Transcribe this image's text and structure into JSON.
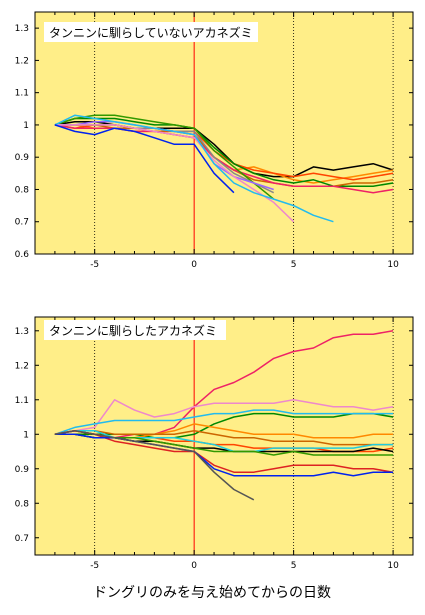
{
  "xlabel": "ドングリのみを与え始めてからの日数",
  "chart_data": [
    {
      "type": "line",
      "title": "タンニンに馴らしていないアカネズミ",
      "xlim": [
        -8,
        11
      ],
      "ylim": [
        0.6,
        1.35
      ],
      "xticks": [
        -5,
        0,
        5,
        10
      ],
      "yticks": [
        0.6,
        0.7,
        0.8,
        0.9,
        1,
        1.1,
        1.2,
        1.3
      ],
      "ytick_labels": [
        "0.6",
        "0.7",
        "0.8",
        "0.9",
        "1",
        "1.1",
        "1.2",
        "1.3"
      ],
      "grid": "dotted vertical lines at x = -5, 5, 10; solid red line at x = 0",
      "background": "#ffee88",
      "series": [
        {
          "color": "#000000",
          "x": [
            -7,
            -6,
            -5,
            -4,
            -3,
            -2,
            -1,
            0,
            1,
            2,
            3,
            4,
            5,
            6,
            7,
            8,
            9,
            10
          ],
          "y": [
            1,
            1.01,
            1.01,
            1.0,
            0.99,
            0.99,
            0.99,
            0.99,
            0.94,
            0.88,
            0.85,
            0.84,
            0.84,
            0.87,
            0.86,
            0.87,
            0.88,
            0.86
          ]
        },
        {
          "color": "#ff8800",
          "x": [
            -7,
            -6,
            -5,
            -4,
            -3,
            -2,
            -1,
            0,
            1,
            2,
            3,
            4,
            5,
            6,
            7,
            8,
            9,
            10
          ],
          "y": [
            1,
            1.0,
            0.99,
            0.99,
            0.98,
            0.98,
            0.97,
            0.96,
            0.9,
            0.86,
            0.87,
            0.85,
            0.83,
            0.82,
            0.83,
            0.84,
            0.85,
            0.86
          ]
        },
        {
          "color": "#ff4400",
          "x": [
            -7,
            -6,
            -5,
            -4,
            -3,
            -2,
            -1,
            0,
            1,
            2,
            3,
            4,
            5,
            6,
            7,
            8,
            9,
            10
          ],
          "y": [
            1,
            0.99,
            1.0,
            1.0,
            0.99,
            0.99,
            0.98,
            0.98,
            0.92,
            0.88,
            0.86,
            0.85,
            0.84,
            0.85,
            0.84,
            0.83,
            0.84,
            0.85
          ]
        },
        {
          "color": "#008800",
          "x": [
            -7,
            -6,
            -5,
            -4,
            -3,
            -2,
            -1,
            0,
            1,
            2,
            3,
            4,
            5,
            6,
            7,
            8,
            9,
            10
          ],
          "y": [
            1,
            1.02,
            1.02,
            1.02,
            1.01,
            1.0,
            1.0,
            0.99,
            0.93,
            0.88,
            0.85,
            0.83,
            0.82,
            0.83,
            0.81,
            0.81,
            0.81,
            0.82
          ]
        },
        {
          "color": "#cc6600",
          "x": [
            -7,
            -6,
            -5,
            -4,
            -3,
            -2,
            -1,
            0,
            1,
            2,
            3,
            4,
            5,
            6,
            7,
            8,
            9,
            10
          ],
          "y": [
            1,
            1.0,
            1.0,
            0.99,
            0.99,
            0.98,
            0.98,
            0.97,
            0.9,
            0.86,
            0.83,
            0.82,
            0.81,
            0.81,
            0.81,
            0.82,
            0.82,
            0.83
          ]
        },
        {
          "color": "#ee2266",
          "x": [
            -7,
            -6,
            -5,
            -4,
            -3,
            -2,
            -1,
            0,
            1,
            2,
            3,
            4,
            5,
            6,
            7,
            8,
            9,
            10
          ],
          "y": [
            1,
            0.99,
            0.99,
            0.99,
            0.98,
            0.98,
            0.97,
            0.96,
            0.9,
            0.86,
            0.84,
            0.82,
            0.81,
            0.81,
            0.81,
            0.8,
            0.79,
            0.8
          ]
        },
        {
          "color": "#339900",
          "x": [
            -7,
            -6,
            -5,
            -4,
            -3,
            -2,
            -1,
            0,
            1,
            2,
            3,
            4
          ],
          "y": [
            1,
            1.02,
            1.03,
            1.03,
            1.02,
            1.01,
            1.0,
            0.99,
            0.92,
            0.87,
            0.82,
            0.77
          ]
        },
        {
          "color": "#888888",
          "x": [
            -7,
            -6,
            -5,
            -4,
            -3,
            -2,
            -1,
            0,
            1,
            2,
            3,
            4
          ],
          "y": [
            1,
            1.0,
            1.0,
            1.0,
            0.99,
            0.99,
            0.98,
            0.98,
            0.9,
            0.85,
            0.82,
            0.79
          ]
        },
        {
          "color": "#9966ff",
          "x": [
            -7,
            -6,
            -5,
            -4,
            -3,
            -2,
            -1,
            0,
            1,
            2,
            3,
            4
          ],
          "y": [
            1,
            1.0,
            1.01,
            1.01,
            1.0,
            0.99,
            0.98,
            0.97,
            0.88,
            0.84,
            0.82,
            0.8
          ]
        },
        {
          "color": "#ee88cc",
          "x": [
            -7,
            -6,
            -5,
            -4,
            -3,
            -2,
            -1,
            0,
            1,
            2,
            3,
            4,
            5
          ],
          "y": [
            1,
            1.0,
            1.0,
            1.0,
            0.99,
            0.98,
            0.97,
            0.96,
            0.89,
            0.84,
            0.8,
            0.76,
            0.7
          ]
        },
        {
          "color": "#22bbee",
          "x": [
            -7,
            -6,
            -5,
            -4,
            -3,
            -2,
            -1,
            0,
            1,
            2,
            3,
            4,
            5,
            6,
            7
          ],
          "y": [
            1,
            1.03,
            1.02,
            1.01,
            1.0,
            0.99,
            0.98,
            0.97,
            0.88,
            0.82,
            0.79,
            0.77,
            0.75,
            0.72,
            0.7
          ]
        },
        {
          "color": "#0022ee",
          "x": [
            -7,
            -6,
            -5,
            -4,
            -3,
            -2,
            -1,
            0,
            1,
            2
          ],
          "y": [
            1,
            0.98,
            0.97,
            0.99,
            0.98,
            0.96,
            0.94,
            0.94,
            0.85,
            0.79
          ]
        }
      ]
    },
    {
      "type": "line",
      "title": "タンニンに馴らしたアカネズミ",
      "xlim": [
        -8,
        11
      ],
      "ylim": [
        0.65,
        1.34
      ],
      "xticks": [
        -5,
        0,
        5,
        10
      ],
      "yticks": [
        0.7,
        0.8,
        0.9,
        1,
        1.1,
        1.2,
        1.3
      ],
      "ytick_labels": [
        "0.7",
        "0.8",
        "0.9",
        "1",
        "1.1",
        "1.2",
        "1.3"
      ],
      "grid": "dotted vertical lines at x = -5, 5, 10; solid red line at x = 0",
      "background": "#ffee88",
      "series": [
        {
          "color": "#ee2266",
          "x": [
            -7,
            -6,
            -5,
            -4,
            -3,
            -2,
            -1,
            0,
            1,
            2,
            3,
            4,
            5,
            6,
            7,
            8,
            9,
            10
          ],
          "y": [
            1,
            1.01,
            1.0,
            0.99,
            1.0,
            1.0,
            1.02,
            1.08,
            1.13,
            1.15,
            1.18,
            1.22,
            1.24,
            1.25,
            1.28,
            1.29,
            1.29,
            1.3
          ]
        },
        {
          "color": "#ee88cc",
          "x": [
            -7,
            -6,
            -5,
            -4,
            -3,
            -2,
            -1,
            0,
            1,
            2,
            3,
            4,
            5,
            6,
            7,
            8,
            9,
            10
          ],
          "y": [
            1,
            1.01,
            1.02,
            1.1,
            1.07,
            1.05,
            1.06,
            1.08,
            1.09,
            1.09,
            1.09,
            1.09,
            1.1,
            1.09,
            1.08,
            1.08,
            1.07,
            1.08
          ]
        },
        {
          "color": "#008800",
          "x": [
            -7,
            -6,
            -5,
            -4,
            -3,
            -2,
            -1,
            0,
            1,
            2,
            3,
            4,
            5,
            6,
            7,
            8,
            9,
            10
          ],
          "y": [
            1,
            1.0,
            1.0,
            1.0,
            1.0,
            0.99,
            0.99,
            1.0,
            1.03,
            1.05,
            1.06,
            1.06,
            1.05,
            1.05,
            1.05,
            1.06,
            1.06,
            1.05
          ]
        },
        {
          "color": "#22bbee",
          "x": [
            -7,
            -6,
            -5,
            -4,
            -3,
            -2,
            -1,
            0,
            1,
            2,
            3,
            4,
            5,
            6,
            7,
            8,
            9,
            10
          ],
          "y": [
            1,
            1.02,
            1.03,
            1.04,
            1.04,
            1.04,
            1.04,
            1.05,
            1.06,
            1.06,
            1.07,
            1.07,
            1.06,
            1.06,
            1.06,
            1.06,
            1.06,
            1.06
          ]
        },
        {
          "color": "#ff8800",
          "x": [
            -7,
            -6,
            -5,
            -4,
            -3,
            -2,
            -1,
            0,
            1,
            2,
            3,
            4,
            5,
            6,
            7,
            8,
            9,
            10
          ],
          "y": [
            1,
            1.01,
            1.0,
            0.99,
            0.99,
            1.0,
            1.01,
            1.03,
            1.02,
            1.01,
            1.0,
            1.0,
            1.0,
            0.99,
            0.99,
            0.99,
            1.0,
            1.0
          ]
        },
        {
          "color": "#cc6600",
          "x": [
            -7,
            -6,
            -5,
            -4,
            -3,
            -2,
            -1,
            0,
            1,
            2,
            3,
            4,
            5,
            6,
            7,
            8,
            9,
            10
          ],
          "y": [
            1,
            1.01,
            1.01,
            1.0,
            1.0,
            1.0,
            1.0,
            1.01,
            1.0,
            0.99,
            0.99,
            0.98,
            0.98,
            0.98,
            0.97,
            0.97,
            0.97,
            0.97
          ]
        },
        {
          "color": "#ff4400",
          "x": [
            -7,
            -6,
            -5,
            -4,
            -3,
            -2,
            -1,
            0,
            1,
            2,
            3,
            4,
            5,
            6,
            7,
            8,
            9,
            10
          ],
          "y": [
            1,
            1.01,
            1.0,
            0.99,
            0.99,
            0.99,
            0.98,
            0.98,
            0.97,
            0.97,
            0.96,
            0.96,
            0.96,
            0.96,
            0.95,
            0.95,
            0.95,
            0.96
          ]
        },
        {
          "color": "#000000",
          "x": [
            -7,
            -6,
            -5,
            -4,
            -3,
            -2,
            -1,
            0,
            1,
            2,
            3,
            4,
            5,
            6,
            7,
            8,
            9,
            10
          ],
          "y": [
            1,
            1.0,
            0.99,
            0.99,
            0.98,
            0.98,
            0.97,
            0.96,
            0.96,
            0.95,
            0.95,
            0.95,
            0.95,
            0.95,
            0.95,
            0.95,
            0.96,
            0.95
          ]
        },
        {
          "color": "#22ccdd",
          "x": [
            -7,
            -6,
            -5,
            -4,
            -3,
            -2,
            -1,
            0,
            1,
            2,
            3,
            4,
            5,
            6,
            7,
            8,
            9,
            10
          ],
          "y": [
            1,
            1.01,
            1.01,
            0.99,
            0.99,
            0.99,
            0.99,
            0.98,
            0.97,
            0.95,
            0.95,
            0.96,
            0.96,
            0.96,
            0.96,
            0.96,
            0.97,
            0.97
          ]
        },
        {
          "color": "#339900",
          "x": [
            -7,
            -6,
            -5,
            -4,
            -3,
            -2,
            -1,
            0,
            1,
            2,
            3,
            4,
            5,
            6,
            7,
            8,
            9,
            10
          ],
          "y": [
            1,
            1.0,
            0.99,
            0.99,
            0.99,
            0.98,
            0.97,
            0.96,
            0.95,
            0.95,
            0.95,
            0.94,
            0.95,
            0.94,
            0.94,
            0.94,
            0.94,
            0.94
          ]
        },
        {
          "color": "#dd2222",
          "x": [
            -7,
            -6,
            -5,
            -4,
            -3,
            -2,
            -1,
            0,
            1,
            2,
            3,
            4,
            5,
            6,
            7,
            8,
            9,
            10
          ],
          "y": [
            1,
            1.01,
            1.0,
            0.98,
            0.97,
            0.96,
            0.95,
            0.95,
            0.91,
            0.89,
            0.89,
            0.9,
            0.91,
            0.91,
            0.91,
            0.9,
            0.9,
            0.89
          ]
        },
        {
          "color": "#0022ee",
          "x": [
            -7,
            -6,
            -5,
            -4,
            -3,
            -2,
            -1,
            0,
            1,
            2,
            3,
            4,
            5,
            6,
            7,
            8,
            9,
            10
          ],
          "y": [
            1,
            1.0,
            0.99,
            0.99,
            0.98,
            0.97,
            0.96,
            0.95,
            0.9,
            0.88,
            0.88,
            0.88,
            0.88,
            0.88,
            0.89,
            0.88,
            0.89,
            0.89
          ]
        },
        {
          "color": "#555555",
          "x": [
            -7,
            -6,
            -5,
            -4,
            -3,
            -2,
            -1,
            0,
            1,
            2,
            3
          ],
          "y": [
            1,
            1.01,
            1.0,
            0.99,
            0.98,
            0.97,
            0.96,
            0.95,
            0.89,
            0.84,
            0.81
          ]
        }
      ]
    }
  ]
}
